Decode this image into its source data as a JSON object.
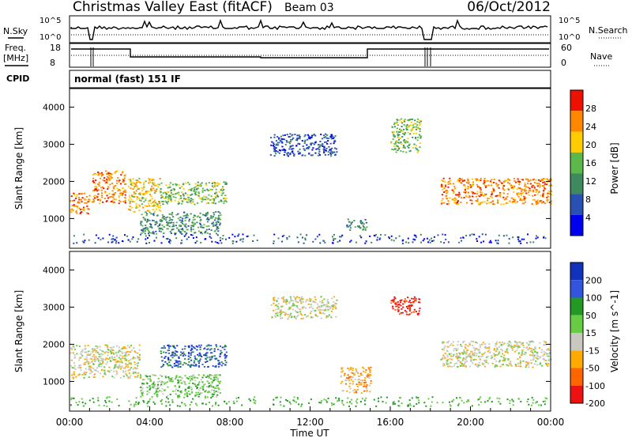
{
  "header": {
    "title": "Christmas Valley East (fitACF)",
    "beam": "Beam 03",
    "date": "06/Oct/2012"
  },
  "top_panels": {
    "nsky_label": "N.Sky",
    "nsky_ticks": [
      "10^5",
      "10^0"
    ],
    "nsearch_label": "N.Search",
    "nsearch_ticks": [
      "10^5",
      "10^0"
    ],
    "freq_label": "Freq.",
    "freq_unit": "[MHz]",
    "freq_ticks": [
      "18",
      "8"
    ],
    "nave_label": "Nave",
    "nave_ticks": [
      "60",
      "0"
    ],
    "cpid_label": "CPID",
    "cpid_value": "normal (fast) 151 IF"
  },
  "chart_data": [
    {
      "type": "heatmap",
      "name": "power",
      "ylabel": "Slant Range [km]",
      "ylim": [
        200,
        4500
      ],
      "yticks": [
        1000,
        2000,
        3000,
        4000
      ],
      "xlim": [
        0,
        24
      ],
      "colorbar": {
        "label": "Power [dB]",
        "ticks": [
          "4",
          "8",
          "12",
          "16",
          "20",
          "24",
          "28"
        ],
        "colors": [
          "#0000ee",
          "#2a50b4",
          "#3e8a5e",
          "#5cb84a",
          "#ffcc00",
          "#ff8800",
          "#ee1100"
        ]
      },
      "features": [
        {
          "t0": 0.0,
          "t1": 1.0,
          "r0": 1150,
          "r1": 1700,
          "level": 5
        },
        {
          "t0": 1.1,
          "t1": 2.8,
          "r0": 1400,
          "r1": 2300,
          "level": 5
        },
        {
          "t0": 2.9,
          "t1": 4.5,
          "r0": 1200,
          "r1": 2100,
          "level": 4
        },
        {
          "t0": 4.5,
          "t1": 7.8,
          "r0": 1400,
          "r1": 2000,
          "level": 3
        },
        {
          "t0": 3.5,
          "t1": 7.5,
          "r0": 600,
          "r1": 1200,
          "level": 2
        },
        {
          "t0": 10.0,
          "t1": 13.3,
          "r0": 2700,
          "r1": 3300,
          "level": 1
        },
        {
          "t0": 13.8,
          "t1": 14.8,
          "r0": 700,
          "r1": 1000,
          "level": 2
        },
        {
          "t0": 16.0,
          "t1": 17.5,
          "r0": 2800,
          "r1": 3700,
          "level": 3
        },
        {
          "t0": 18.5,
          "t1": 24.0,
          "r0": 1400,
          "r1": 2100,
          "level": 5
        }
      ]
    },
    {
      "type": "heatmap",
      "name": "velocity",
      "ylabel": "Slant Range [km]",
      "ylim": [
        200,
        4500
      ],
      "yticks": [
        1000,
        2000,
        3000,
        4000
      ],
      "xlim": [
        0,
        24
      ],
      "colorbar": {
        "label": "Velocity [m s^-1]",
        "ticks": [
          "200",
          "100",
          "50",
          "15",
          "-15",
          "-50",
          "-100",
          "-200"
        ],
        "colors": [
          "#1133bb",
          "#3355dd",
          "#229922",
          "#66cc44",
          "#c8c8c0",
          "#ffaa00",
          "#ff6600",
          "#ee1111"
        ]
      },
      "features": [
        {
          "t0": 0.0,
          "t1": 3.5,
          "r0": 1100,
          "r1": 2000,
          "level": 4
        },
        {
          "t0": 4.5,
          "t1": 7.8,
          "r0": 1400,
          "r1": 2000,
          "level": 1
        },
        {
          "t0": 3.5,
          "t1": 7.5,
          "r0": 600,
          "r1": 1200,
          "level": 3
        },
        {
          "t0": 10.0,
          "t1": 13.3,
          "r0": 2700,
          "r1": 3300,
          "level": 4
        },
        {
          "t0": 13.5,
          "t1": 15.0,
          "r0": 700,
          "r1": 1400,
          "level": 5
        },
        {
          "t0": 16.0,
          "t1": 17.5,
          "r0": 2800,
          "r1": 3300,
          "level": 7
        },
        {
          "t0": 18.5,
          "t1": 24.0,
          "r0": 1400,
          "r1": 2100,
          "level": 4
        }
      ]
    }
  ],
  "x_axis": {
    "ticks": [
      "00:00",
      "04:00",
      "08:00",
      "12:00",
      "16:00",
      "20:00",
      "00:00"
    ],
    "label": "Time UT"
  }
}
